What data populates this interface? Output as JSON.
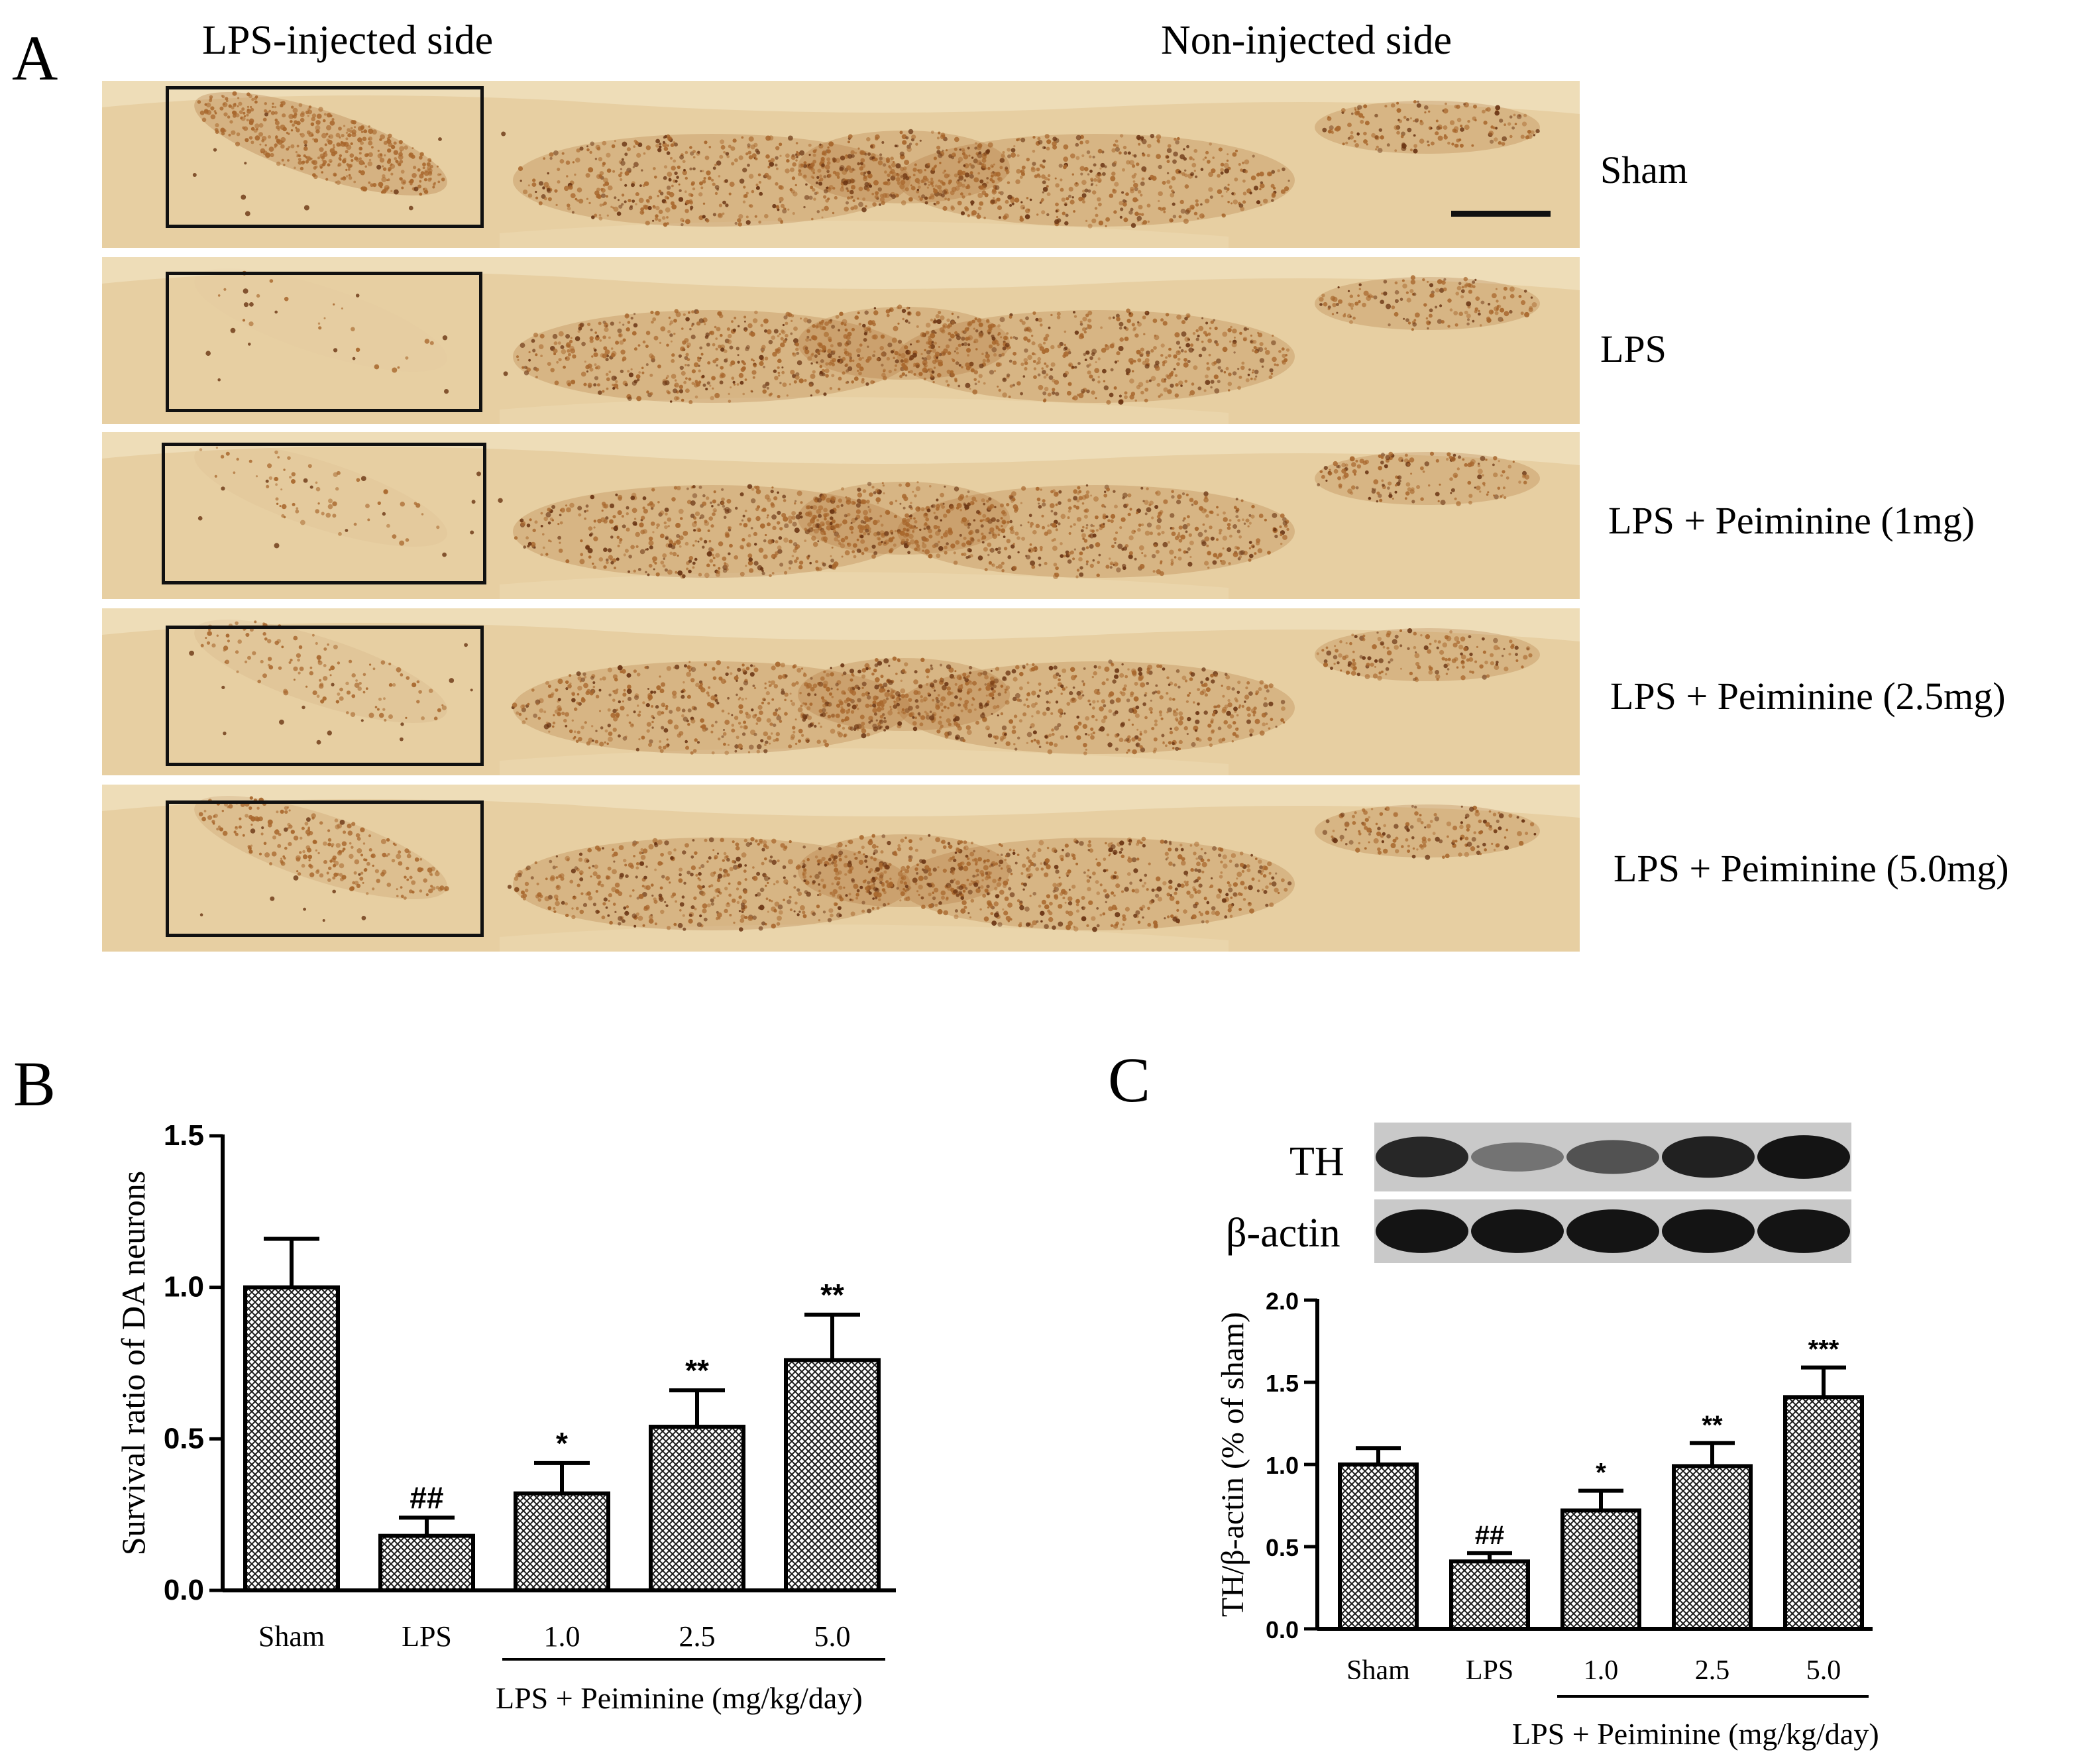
{
  "panel_a": {
    "letter": "A",
    "left_heading": "LPS-injected side",
    "right_heading": "Non-injected side",
    "rows": [
      {
        "label": "Sham",
        "loss": 0.0
      },
      {
        "label": "LPS",
        "loss": 0.95
      },
      {
        "label": "LPS + Peiminine (1mg)",
        "loss": 0.85
      },
      {
        "label": "LPS + Peiminine (2.5mg)",
        "loss": 0.7
      },
      {
        "label": "LPS + Peiminine (5.0mg)",
        "loss": 0.45
      }
    ],
    "colors": {
      "tissue": "#e7cfa2",
      "stain": "#a8672d",
      "dark_stain": "#6a3413"
    }
  },
  "panel_b": {
    "letter": "B",
    "group_caption": "LPS + Peiminine (mg/kg/day)"
  },
  "panel_c": {
    "letter": "C",
    "blot_labels": [
      "TH",
      "β-actin"
    ],
    "th_band_intensity": [
      0.85,
      0.45,
      0.62,
      0.88,
      0.95
    ],
    "actin_band_intensity": [
      0.95,
      0.95,
      0.95,
      0.95,
      0.95
    ],
    "group_caption": "LPS + Peiminine (mg/kg/day)"
  },
  "chart_data": [
    {
      "type": "bar",
      "ylabel": "Survival ratio of DA neurons",
      "categories": [
        "Sham",
        "LPS",
        "1.0",
        "2.5",
        "5.0"
      ],
      "values": [
        1.0,
        0.18,
        0.32,
        0.54,
        0.76
      ],
      "errors": [
        0.16,
        0.06,
        0.1,
        0.12,
        0.15
      ],
      "annotations": [
        "",
        "##",
        "*",
        "**",
        "**"
      ],
      "ylim": [
        0,
        1.5
      ],
      "yticks": [
        "0.0",
        "0.5",
        "1.0",
        "1.5"
      ],
      "grid": false
    },
    {
      "type": "bar",
      "ylabel": "TH/β-actin (% of sham)",
      "categories": [
        "Sham",
        "LPS",
        "1.0",
        "2.5",
        "5.0"
      ],
      "values": [
        1.0,
        0.41,
        0.72,
        0.99,
        1.41
      ],
      "errors": [
        0.1,
        0.05,
        0.12,
        0.14,
        0.18
      ],
      "annotations": [
        "",
        "##",
        "*",
        "**",
        "***"
      ],
      "ylim": [
        0,
        2.0
      ],
      "yticks": [
        "0.0",
        "0.5",
        "1.0",
        "1.5",
        "2.0"
      ],
      "grid": false
    }
  ]
}
